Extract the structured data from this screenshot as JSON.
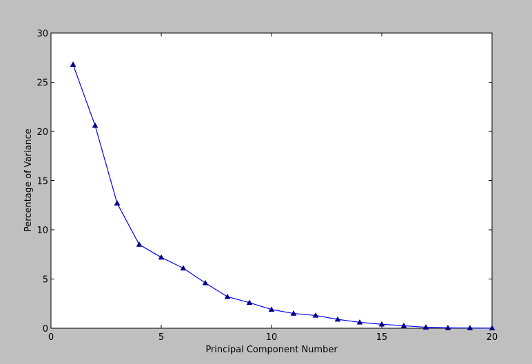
{
  "chart_data": {
    "type": "line",
    "title": "",
    "xlabel": "Principal Component Number",
    "ylabel": "Percentage of Variance",
    "xlim": [
      0,
      20
    ],
    "ylim": [
      0,
      30
    ],
    "xticks": [
      0,
      5,
      10,
      15,
      20
    ],
    "yticks": [
      0,
      5,
      10,
      15,
      20,
      25,
      30
    ],
    "xtick_labels": [
      "0",
      "5",
      "10",
      "15",
      "20"
    ],
    "ytick_labels": [
      "0",
      "5",
      "10",
      "15",
      "20",
      "25",
      "30"
    ],
    "grid": false,
    "legend": "none",
    "series": [
      {
        "color": "#0000ff",
        "marker": "triangle",
        "marker_color": "#00008b",
        "x": [
          1,
          2,
          3,
          4,
          5,
          6,
          7,
          8,
          9,
          10,
          11,
          12,
          13,
          14,
          15,
          16,
          17,
          18,
          19,
          20
        ],
        "y": [
          26.8,
          20.6,
          12.7,
          8.5,
          7.2,
          6.1,
          4.6,
          3.2,
          2.6,
          1.9,
          1.5,
          1.3,
          0.9,
          0.6,
          0.4,
          0.25,
          0.1,
          0.04,
          0.02,
          0.01
        ]
      }
    ]
  }
}
